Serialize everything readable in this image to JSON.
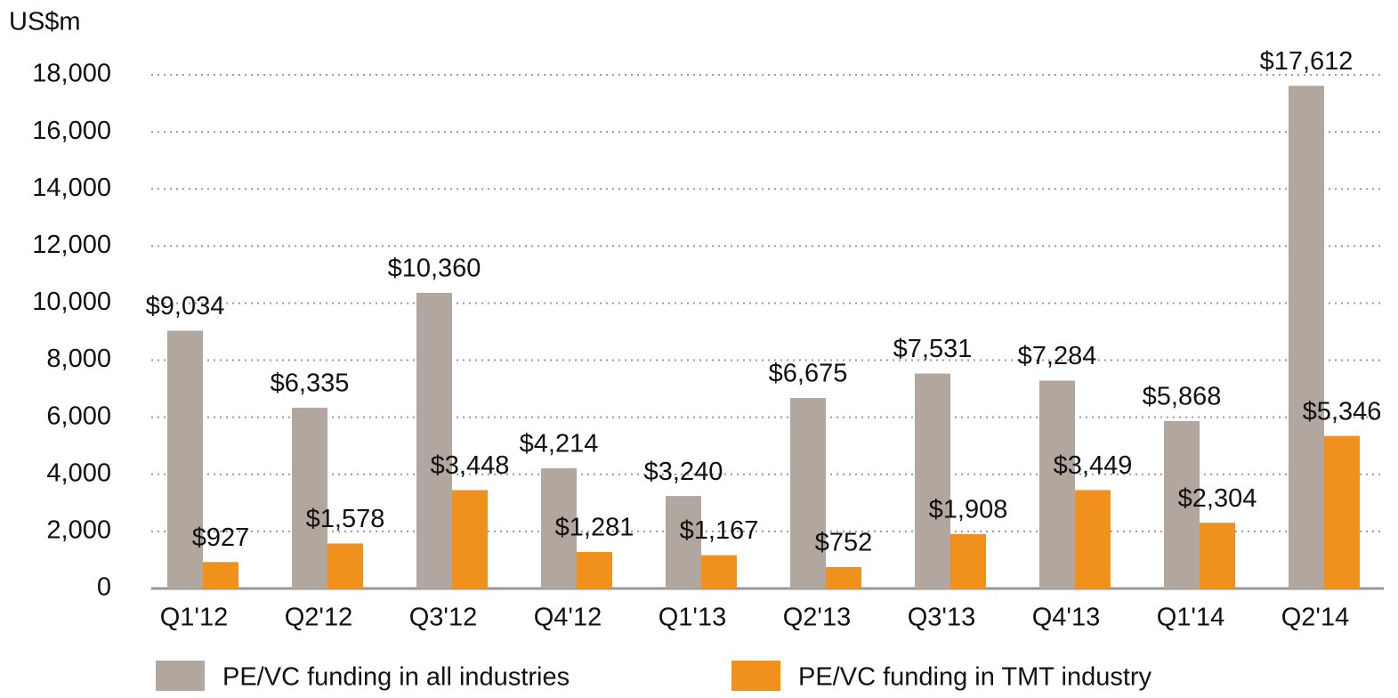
{
  "chart_data": {
    "type": "bar",
    "y_axis_label": "US$m",
    "categories": [
      "Q1'12",
      "Q2'12",
      "Q3'12",
      "Q4'12",
      "Q1'13",
      "Q2'13",
      "Q3'13",
      "Q4'13",
      "Q1'14",
      "Q2'14"
    ],
    "series": [
      {
        "name": "PE/VC funding in all industries",
        "color": "#b1a79e",
        "values": [
          9034,
          6335,
          10360,
          4214,
          3240,
          6675,
          7531,
          7284,
          5868,
          17612
        ],
        "value_labels": [
          "$9,034",
          "$6,335",
          "$10,360",
          "$4,214",
          "$3,240",
          "$6,675",
          "$7,531",
          "$7,284",
          "$5,868",
          "$17,612"
        ]
      },
      {
        "name": "PE/VC funding in TMT industry",
        "color": "#f0911d",
        "values": [
          927,
          1578,
          3448,
          1281,
          1167,
          752,
          1908,
          3449,
          2304,
          5346
        ],
        "value_labels": [
          "$927",
          "$1,578",
          "$3,448",
          "$1,281",
          "$1,167",
          "$752",
          "$1,908",
          "$3,449",
          "$2,304",
          "$5,346"
        ]
      }
    ],
    "ylim": [
      0,
      18000
    ],
    "yticks": [
      0,
      {
        "value": 2000,
        "label": "2,000"
      },
      {
        "value": 4000,
        "label": "4,000"
      },
      {
        "value": 6000,
        "label": "6,000"
      },
      {
        "value": 8000,
        "label": "8,000"
      },
      {
        "value": 10000,
        "label": "10,000"
      },
      {
        "value": 12000,
        "label": "12,000"
      },
      {
        "value": 14000,
        "label": "14,000"
      },
      {
        "value": 16000,
        "label": "16,000"
      },
      {
        "value": 18000,
        "label": "18,000"
      }
    ],
    "grid": true,
    "legend": "bottom"
  }
}
